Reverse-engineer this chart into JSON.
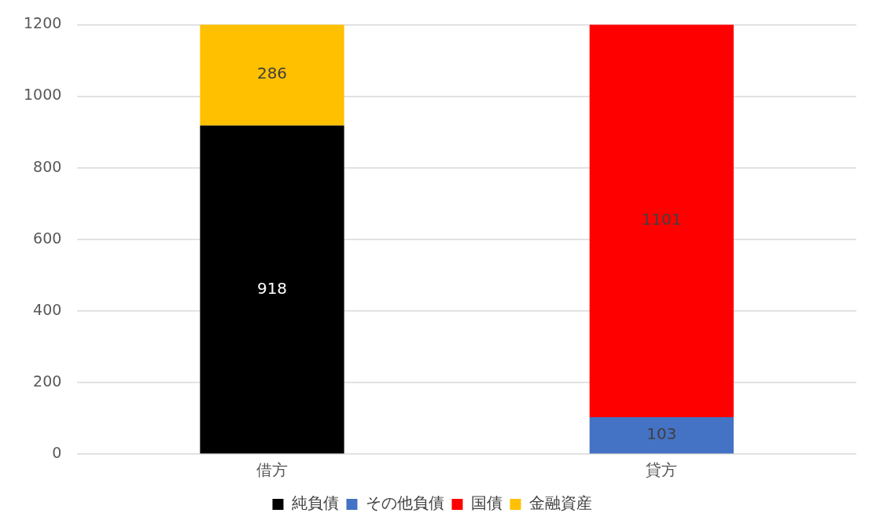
{
  "chart_data": {
    "type": "bar",
    "stacked": true,
    "categories": [
      "借方",
      "貸方"
    ],
    "series": [
      {
        "name": "純負債",
        "color": "#000000",
        "values": [
          918,
          null
        ]
      },
      {
        "name": "その他負債",
        "color": "#4472c4",
        "values": [
          null,
          103
        ]
      },
      {
        "name": "国債",
        "color": "#ff0000",
        "values": [
          null,
          1101
        ]
      },
      {
        "name": "金融資産",
        "color": "#ffc000",
        "values": [
          286,
          null
        ]
      }
    ],
    "ylim": [
      0,
      1200
    ],
    "yticks": [
      0,
      200,
      400,
      600,
      800,
      1000,
      1200
    ],
    "grid": "y",
    "legend": "bottom",
    "data_labels": true
  }
}
